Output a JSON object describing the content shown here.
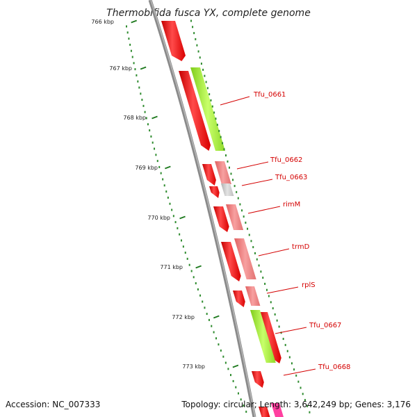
{
  "title": "Thermobifida fusca YX, complete genome",
  "footer": {
    "accession": "Accession: NC_007333",
    "summary": "Topology: circular; Length: 3,642,249 bp; Genes: 3,176"
  },
  "colors": {
    "backbone": "#8a8a8a",
    "tick_major": "#1f7a1f",
    "tick_minor": "#2e8b2e",
    "cds_red": "#e60000",
    "cds_pink": "#f07070",
    "cds_green": "#99e62e",
    "cds_gray": "#c8c8c8",
    "label": "#d40000"
  },
  "ruler": {
    "ticks": [
      "766 kbp",
      "767 kbp",
      "768 kbp",
      "769 kbp",
      "770 kbp",
      "771 kbp",
      "772 kbp",
      "773 kbp"
    ]
  },
  "genes": [
    {
      "label": "Tfu_0661"
    },
    {
      "label": "Tfu_0662"
    },
    {
      "label": "Tfu_0663"
    },
    {
      "label": "rimM"
    },
    {
      "label": "trmD"
    },
    {
      "label": "rplS"
    },
    {
      "label": "Tfu_0667"
    },
    {
      "label": "Tfu_0668"
    }
  ]
}
